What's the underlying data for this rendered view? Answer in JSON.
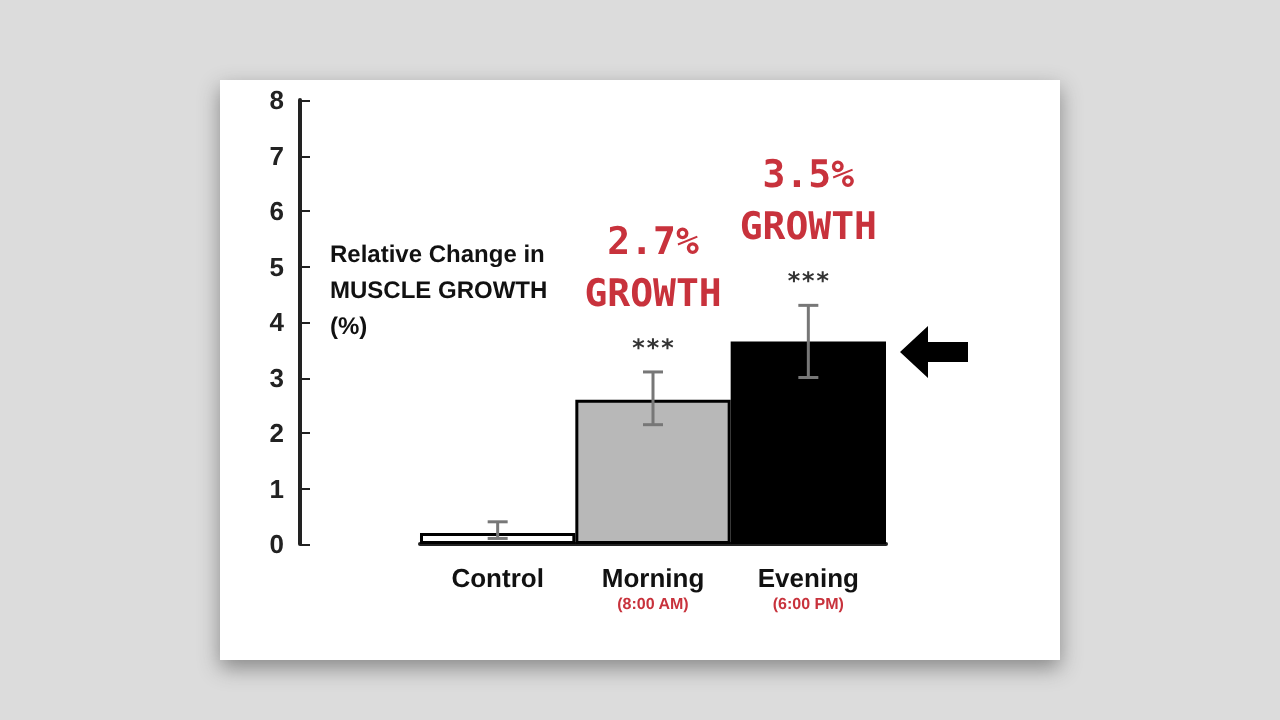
{
  "chart_data": {
    "type": "bar",
    "ylabel": "Relative Change in\nMUSCLE GROWTH\n(%)",
    "categories": [
      "Control",
      "Morning\n(8:00 AM)",
      "Evening\n(6:00 PM)"
    ],
    "values": [
      0.2,
      2.6,
      3.65
    ],
    "colors": [
      "#ffffff",
      "#b8b8b8",
      "#000000"
    ],
    "errors": [
      [
        0.1,
        0.4
      ],
      [
        2.15,
        3.1
      ],
      [
        3.0,
        4.3
      ]
    ],
    "ylim": [
      0,
      8
    ],
    "yticks": [
      0,
      1,
      2,
      3,
      4,
      5,
      6,
      7,
      8
    ],
    "grid": false,
    "annotations": [
      "2.7%\nGROWTH",
      "3.5%\nGROWTH",
      "***",
      "***"
    ]
  }
}
